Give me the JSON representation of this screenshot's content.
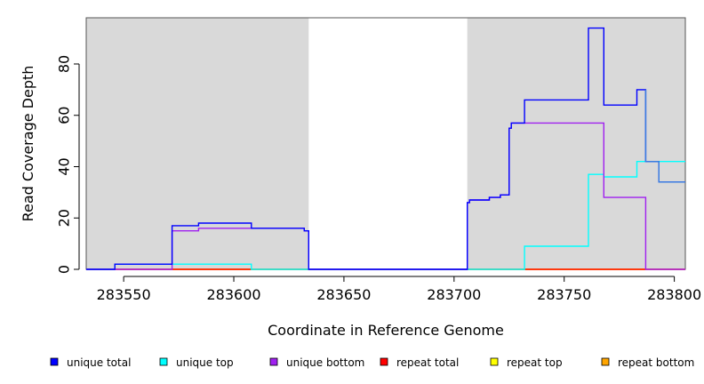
{
  "chart_data": {
    "type": "line",
    "title": "",
    "xlabel": "Coordinate in Reference Genome",
    "ylabel": "Read Coverage Depth",
    "xlim": [
      283533,
      283805
    ],
    "ylim": [
      0,
      98
    ],
    "x_ticks": [
      283550,
      283600,
      283650,
      283700,
      283750,
      283800
    ],
    "y_ticks": [
      0,
      20,
      40,
      60,
      80
    ],
    "grid": false,
    "legend_placement": "bottom",
    "shaded_regions": [
      [
        283533,
        283634
      ],
      [
        283706,
        283805
      ]
    ],
    "colors": {
      "shade": "#d9d9d9",
      "unique_total": "#0000ff",
      "unique_top": "#00ffff",
      "unique_bottom": "#a020f0",
      "repeat_total": "#ff0000",
      "repeat_top": "#ffff00",
      "repeat_bottom": "#ffa500",
      "unique_total_tail": "#3a7fe0"
    },
    "series": [
      {
        "name": "unique total",
        "color": "#0000ff",
        "points": [
          [
            283533,
            0
          ],
          [
            283546,
            0
          ],
          [
            283546,
            2
          ],
          [
            283572,
            2
          ],
          [
            283572,
            17
          ],
          [
            283584,
            17
          ],
          [
            283584,
            18
          ],
          [
            283608,
            18
          ],
          [
            283608,
            16
          ],
          [
            283632,
            16
          ],
          [
            283632,
            15
          ],
          [
            283634,
            15
          ],
          [
            283634,
            0
          ],
          [
            283706,
            0
          ],
          [
            283706,
            26
          ],
          [
            283707,
            26
          ],
          [
            283707,
            27
          ],
          [
            283716,
            27
          ],
          [
            283716,
            28
          ],
          [
            283721,
            28
          ],
          [
            283721,
            29
          ],
          [
            283725,
            29
          ],
          [
            283725,
            55
          ],
          [
            283726,
            55
          ],
          [
            283726,
            57
          ],
          [
            283732,
            57
          ],
          [
            283732,
            66
          ],
          [
            283761,
            66
          ],
          [
            283761,
            94
          ],
          [
            283768,
            94
          ],
          [
            283768,
            64
          ],
          [
            283783,
            64
          ],
          [
            283783,
            70
          ],
          [
            283787,
            70
          ],
          [
            283787,
            42
          ],
          [
            283793,
            42
          ],
          [
            283793,
            34
          ],
          [
            283805,
            34
          ]
        ]
      },
      {
        "name": "unique top",
        "color": "#00ffff",
        "points": [
          [
            283533,
            0
          ],
          [
            283546,
            0
          ],
          [
            283546,
            2
          ],
          [
            283608,
            2
          ],
          [
            283608,
            0
          ],
          [
            283732,
            0
          ],
          [
            283732,
            9
          ],
          [
            283761,
            9
          ],
          [
            283761,
            37
          ],
          [
            283768,
            37
          ],
          [
            283768,
            36
          ],
          [
            283783,
            36
          ],
          [
            283783,
            42
          ],
          [
            283787,
            42
          ],
          [
            283805,
            42
          ]
        ]
      },
      {
        "name": "unique bottom",
        "color": "#a020f0",
        "points": [
          [
            283533,
            0
          ],
          [
            283572,
            0
          ],
          [
            283572,
            15
          ],
          [
            283584,
            15
          ],
          [
            283584,
            16
          ],
          [
            283632,
            16
          ],
          [
            283632,
            15
          ],
          [
            283634,
            15
          ],
          [
            283634,
            0
          ],
          [
            283706,
            0
          ],
          [
            283706,
            26
          ],
          [
            283707,
            26
          ],
          [
            283707,
            27
          ],
          [
            283716,
            27
          ],
          [
            283716,
            28
          ],
          [
            283721,
            28
          ],
          [
            283721,
            29
          ],
          [
            283725,
            29
          ],
          [
            283725,
            55
          ],
          [
            283726,
            55
          ],
          [
            283726,
            57
          ],
          [
            283768,
            57
          ],
          [
            283768,
            28
          ],
          [
            283787,
            28
          ],
          [
            283787,
            0
          ],
          [
            283805,
            0
          ]
        ]
      },
      {
        "name": "repeat total",
        "color": "#ff0000",
        "points": [
          [
            283533,
            0
          ],
          [
            283805,
            0
          ]
        ]
      },
      {
        "name": "repeat top",
        "color": "#ffff00",
        "points": [
          [
            283533,
            0
          ],
          [
            283805,
            0
          ]
        ]
      },
      {
        "name": "repeat bottom",
        "color": "#ffa500",
        "points": [
          [
            283533,
            0
          ],
          [
            283805,
            0
          ]
        ]
      }
    ],
    "legend": [
      {
        "label": "unique total",
        "color": "#0000ff"
      },
      {
        "label": "unique top",
        "color": "#00ffff"
      },
      {
        "label": "unique bottom",
        "color": "#a020f0"
      },
      {
        "label": "repeat total",
        "color": "#ff0000"
      },
      {
        "label": "repeat top",
        "color": "#ffff00"
      },
      {
        "label": "repeat bottom",
        "color": "#ffa500"
      }
    ]
  }
}
